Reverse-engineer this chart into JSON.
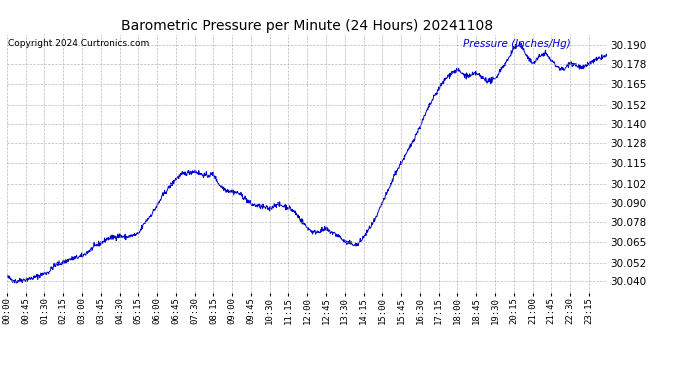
{
  "title": "Barometric Pressure per Minute (24 Hours) 20241108",
  "copyright": "Copyright 2024 Curtronics.com",
  "ylabel": "Pressure (Inches/Hg)",
  "line_color": "#0000cc",
  "background_color": "#ffffff",
  "grid_color": "#aaaaaa",
  "title_color": "#000000",
  "copyright_color": "#000000",
  "ylabel_color": "#0000cc",
  "yticks": [
    30.04,
    30.052,
    30.065,
    30.078,
    30.09,
    30.102,
    30.115,
    30.128,
    30.14,
    30.152,
    30.165,
    30.178,
    30.19
  ],
  "ylim": [
    30.033,
    30.197
  ],
  "xtick_labels": [
    "00:00",
    "00:45",
    "01:30",
    "02:15",
    "03:00",
    "03:45",
    "04:30",
    "05:15",
    "06:00",
    "06:45",
    "07:30",
    "08:15",
    "09:00",
    "09:45",
    "10:30",
    "11:15",
    "12:00",
    "12:45",
    "13:30",
    "14:15",
    "15:00",
    "15:45",
    "16:30",
    "17:15",
    "18:00",
    "18:45",
    "19:30",
    "20:15",
    "21:00",
    "21:45",
    "22:30",
    "23:15"
  ],
  "figsize": [
    6.9,
    3.75
  ],
  "dpi": 100,
  "keypoints": [
    [
      0,
      30.043
    ],
    [
      20,
      30.04
    ],
    [
      40,
      30.041
    ],
    [
      60,
      30.042
    ],
    [
      80,
      30.044
    ],
    [
      100,
      30.046
    ],
    [
      110,
      30.049
    ],
    [
      120,
      30.051
    ],
    [
      135,
      30.052
    ],
    [
      150,
      30.054
    ],
    [
      165,
      30.055
    ],
    [
      180,
      30.056
    ],
    [
      200,
      30.06
    ],
    [
      215,
      30.063
    ],
    [
      230,
      30.065
    ],
    [
      240,
      30.067
    ],
    [
      255,
      30.068
    ],
    [
      270,
      30.069
    ],
    [
      285,
      30.068
    ],
    [
      300,
      30.069
    ],
    [
      315,
      30.07
    ],
    [
      330,
      30.077
    ],
    [
      345,
      30.082
    ],
    [
      360,
      30.088
    ],
    [
      375,
      30.095
    ],
    [
      390,
      30.1
    ],
    [
      405,
      30.105
    ],
    [
      420,
      30.108
    ],
    [
      435,
      30.109
    ],
    [
      450,
      30.11
    ],
    [
      465,
      30.108
    ],
    [
      480,
      30.107
    ],
    [
      495,
      30.108
    ],
    [
      510,
      30.101
    ],
    [
      525,
      30.098
    ],
    [
      540,
      30.097
    ],
    [
      555,
      30.096
    ],
    [
      570,
      30.093
    ],
    [
      585,
      30.089
    ],
    [
      600,
      30.088
    ],
    [
      615,
      30.087
    ],
    [
      630,
      30.086
    ],
    [
      645,
      30.089
    ],
    [
      660,
      30.088
    ],
    [
      675,
      30.087
    ],
    [
      690,
      30.084
    ],
    [
      705,
      30.079
    ],
    [
      720,
      30.074
    ],
    [
      735,
      30.071
    ],
    [
      750,
      30.072
    ],
    [
      765,
      30.073
    ],
    [
      780,
      30.071
    ],
    [
      795,
      30.069
    ],
    [
      810,
      30.065
    ],
    [
      825,
      30.064
    ],
    [
      840,
      30.063
    ],
    [
      855,
      30.068
    ],
    [
      870,
      30.074
    ],
    [
      885,
      30.08
    ],
    [
      900,
      30.09
    ],
    [
      915,
      30.098
    ],
    [
      930,
      30.108
    ],
    [
      945,
      30.115
    ],
    [
      960,
      30.122
    ],
    [
      975,
      30.13
    ],
    [
      990,
      30.138
    ],
    [
      1005,
      30.147
    ],
    [
      1020,
      30.155
    ],
    [
      1035,
      30.162
    ],
    [
      1050,
      30.168
    ],
    [
      1065,
      30.172
    ],
    [
      1080,
      30.174
    ],
    [
      1095,
      30.171
    ],
    [
      1110,
      30.17
    ],
    [
      1125,
      30.172
    ],
    [
      1140,
      30.169
    ],
    [
      1155,
      30.167
    ],
    [
      1170,
      30.168
    ],
    [
      1185,
      30.175
    ],
    [
      1200,
      30.18
    ],
    [
      1215,
      30.188
    ],
    [
      1230,
      30.19
    ],
    [
      1245,
      30.184
    ],
    [
      1260,
      30.178
    ],
    [
      1275,
      30.182
    ],
    [
      1290,
      30.185
    ],
    [
      1305,
      30.18
    ],
    [
      1320,
      30.176
    ],
    [
      1335,
      30.174
    ],
    [
      1350,
      30.179
    ],
    [
      1365,
      30.177
    ],
    [
      1380,
      30.175
    ],
    [
      1395,
      30.178
    ],
    [
      1410,
      30.18
    ],
    [
      1425,
      30.182
    ],
    [
      1439,
      30.183
    ]
  ]
}
